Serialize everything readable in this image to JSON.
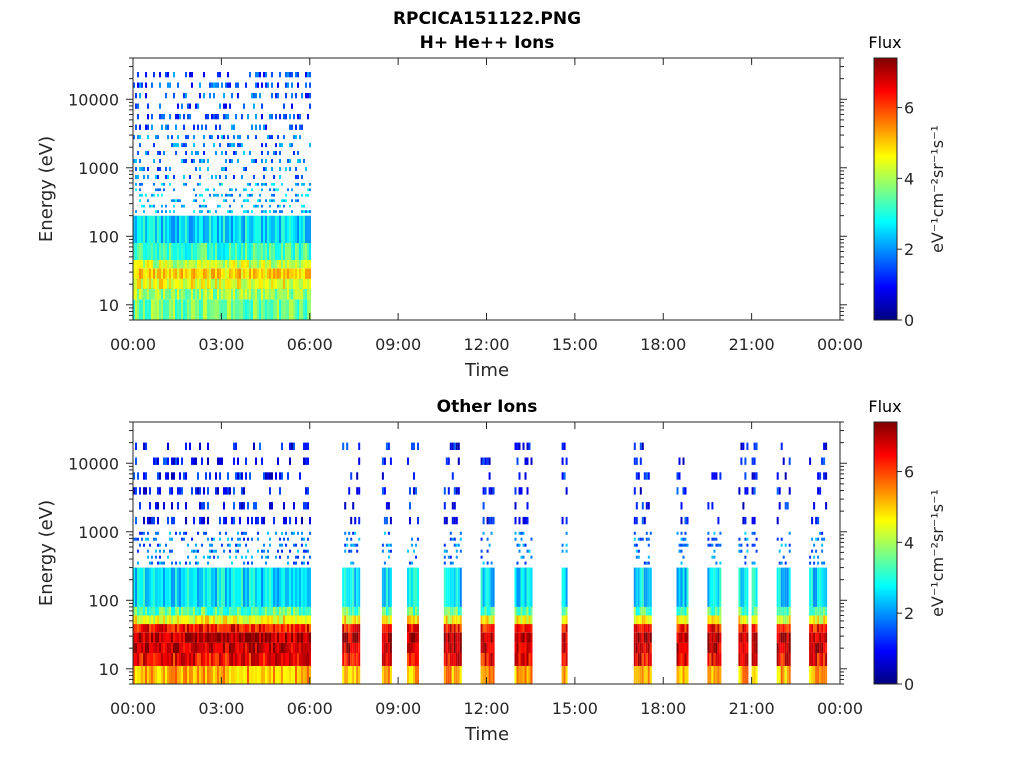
{
  "figure": {
    "title": "RPCICA151122.PNG"
  },
  "colorscale": {
    "stops": [
      "#00007f",
      "#0000ff",
      "#007fff",
      "#00ffff",
      "#7fff7f",
      "#ffff00",
      "#ff7f00",
      "#ff0000",
      "#7f0000"
    ]
  },
  "chart_data": [
    {
      "type": "heatmap",
      "title": "H+ He++ Ions",
      "xlabel": "Time",
      "ylabel": "Energy (eV)",
      "y_scale": "log",
      "ylim": [
        6,
        40000
      ],
      "xlim": [
        "00:00",
        "24:00"
      ],
      "x_ticks": [
        "00:00",
        "03:00",
        "06:00",
        "09:00",
        "12:00",
        "15:00",
        "18:00",
        "21:00",
        "00:00"
      ],
      "y_ticks": [
        "10",
        "100",
        "1000",
        "10000"
      ],
      "colorbar": {
        "label": "Flux",
        "units": "eV⁻¹cm⁻²sr⁻¹s⁻¹",
        "range": [
          0,
          7.4
        ],
        "ticks": [
          "0",
          "2",
          "4",
          "6"
        ]
      },
      "data_intervals": [
        {
          "start_hr": 0.0,
          "end_hr": 6.0
        }
      ],
      "energy_bands": [
        {
          "emin": 6,
          "emax": 12,
          "flux": 3.6
        },
        {
          "emin": 12,
          "emax": 17,
          "flux": 3.9
        },
        {
          "emin": 17,
          "emax": 24,
          "flux": 4.5
        },
        {
          "emin": 24,
          "emax": 34,
          "flux": 4.9
        },
        {
          "emin": 34,
          "emax": 45,
          "flux": 4.2
        },
        {
          "emin": 45,
          "emax": 80,
          "flux": 3.2
        },
        {
          "emin": 80,
          "emax": 200,
          "flux": 2.6
        },
        {
          "emin": 200,
          "emax": 600,
          "flux": 2.3
        },
        {
          "emin": 600,
          "emax": 3000,
          "flux": 1.8
        },
        {
          "emin": 3000,
          "emax": 25000,
          "flux": 1.5
        }
      ]
    },
    {
      "type": "heatmap",
      "title": "Other Ions",
      "xlabel": "Time",
      "ylabel": "Energy (eV)",
      "y_scale": "log",
      "ylim": [
        6,
        40000
      ],
      "xlim": [
        "00:00",
        "24:00"
      ],
      "x_ticks": [
        "00:00",
        "03:00",
        "06:00",
        "09:00",
        "12:00",
        "15:00",
        "18:00",
        "21:00",
        "00:00"
      ],
      "y_ticks": [
        "10",
        "100",
        "1000",
        "10000"
      ],
      "colorbar": {
        "label": "Flux",
        "units": "eV⁻¹cm⁻²sr⁻¹s⁻¹",
        "range": [
          0,
          7.4
        ],
        "ticks": [
          "0",
          "2",
          "4",
          "6"
        ]
      },
      "data_intervals": [
        {
          "start_hr": 0.0,
          "end_hr": 6.0
        },
        {
          "start_hr": 7.1,
          "end_hr": 7.65
        },
        {
          "start_hr": 8.45,
          "end_hr": 8.75
        },
        {
          "start_hr": 9.3,
          "end_hr": 9.65
        },
        {
          "start_hr": 10.55,
          "end_hr": 11.1
        },
        {
          "start_hr": 11.8,
          "end_hr": 12.25
        },
        {
          "start_hr": 12.95,
          "end_hr": 13.5
        },
        {
          "start_hr": 14.55,
          "end_hr": 14.7
        },
        {
          "start_hr": 17.0,
          "end_hr": 17.6
        },
        {
          "start_hr": 18.45,
          "end_hr": 18.8
        },
        {
          "start_hr": 19.5,
          "end_hr": 19.95
        },
        {
          "start_hr": 20.55,
          "end_hr": 20.85
        },
        {
          "start_hr": 21.0,
          "end_hr": 21.2
        },
        {
          "start_hr": 21.85,
          "end_hr": 22.3
        },
        {
          "start_hr": 22.95,
          "end_hr": 23.5
        }
      ],
      "energy_bands": [
        {
          "emin": 6,
          "emax": 11,
          "flux": 5.2
        },
        {
          "emin": 11,
          "emax": 17,
          "flux": 6.5
        },
        {
          "emin": 17,
          "emax": 24,
          "flux": 6.9
        },
        {
          "emin": 24,
          "emax": 34,
          "flux": 7.0
        },
        {
          "emin": 34,
          "emax": 45,
          "flux": 6.4
        },
        {
          "emin": 45,
          "emax": 60,
          "flux": 4.6
        },
        {
          "emin": 60,
          "emax": 80,
          "flux": 3.4
        },
        {
          "emin": 80,
          "emax": 300,
          "flux": 2.6
        },
        {
          "emin": 300,
          "emax": 1000,
          "flux": 1.8
        },
        {
          "emin": 1000,
          "emax": 20000,
          "flux": 1.0
        }
      ]
    }
  ]
}
